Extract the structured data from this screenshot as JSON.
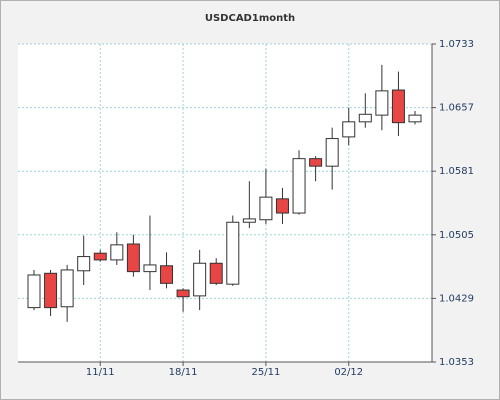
{
  "chart_data": {
    "type": "candlestick",
    "title": "USDCAD1month",
    "categories": [
      null,
      null,
      null,
      null,
      "11/11",
      null,
      null,
      null,
      null,
      "18/11",
      null,
      null,
      null,
      null,
      "25/11",
      null,
      null,
      null,
      null,
      "02/12",
      null,
      null,
      null,
      null
    ],
    "series": [
      {
        "open": [
          1.0418,
          1.0459,
          1.0419,
          1.0462,
          1.0483,
          1.0475,
          1.0494,
          1.0461,
          1.0468,
          1.0439,
          1.0432,
          1.0471,
          1.0446,
          1.052,
          1.0523,
          1.0548,
          1.0531,
          1.0596,
          1.0587,
          1.0622,
          1.064,
          1.0648,
          1.0678,
          1.064
        ],
        "high": [
          1.0463,
          1.0463,
          1.0469,
          1.0504,
          1.0487,
          1.0508,
          1.0505,
          1.0528,
          1.0484,
          1.0441,
          1.0487,
          1.0477,
          1.0528,
          1.0569,
          1.0584,
          1.0561,
          1.0606,
          1.0599,
          1.0633,
          1.0657,
          1.0674,
          1.0708,
          1.07,
          1.0653
        ],
        "low": [
          1.0415,
          1.0408,
          1.0401,
          1.0445,
          1.0473,
          1.0469,
          1.0455,
          1.0439,
          1.0441,
          1.0413,
          1.0415,
          1.0445,
          1.0444,
          1.0513,
          1.0518,
          1.0518,
          1.0529,
          1.0569,
          1.0559,
          1.0612,
          1.0633,
          1.063,
          1.0623,
          1.0637
        ],
        "close": [
          1.0457,
          1.0418,
          1.0463,
          1.0479,
          1.0475,
          1.0493,
          1.0461,
          1.0469,
          1.0447,
          1.0431,
          1.0471,
          1.0447,
          1.052,
          1.0524,
          1.055,
          1.0531,
          1.0596,
          1.0587,
          1.062,
          1.064,
          1.0649,
          1.0677,
          1.0639,
          1.0648
        ]
      }
    ],
    "up_color": "#ffffff",
    "down_color": "#e84545",
    "ylim": [
      1.0353,
      1.0733
    ],
    "yticks": [
      1.0353,
      1.0429,
      1.0505,
      1.0581,
      1.0657,
      1.0733
    ],
    "grid": true
  }
}
